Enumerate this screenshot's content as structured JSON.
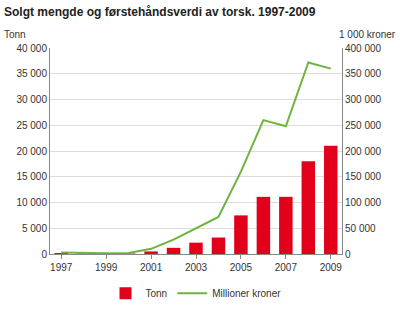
{
  "chart_data": {
    "type": "bar",
    "title": "Solgt mengde og førstehåndsverdi av torsk. 1997-2009",
    "ylabel": "Tonn",
    "y2label": "1 000 kroner",
    "categories": [
      "1997",
      null,
      "1999",
      null,
      "2001",
      null,
      "2003",
      null,
      "2005",
      null,
      "2007",
      null,
      "2009"
    ],
    "series": [
      {
        "name": "Tonn",
        "type": "bar",
        "color": "#e2001a",
        "values": [
          200,
          100,
          100,
          100,
          500,
          1200,
          2200,
          3200,
          7500,
          11100,
          11100,
          18000,
          21000
        ]
      },
      {
        "name": "Millioner kroner",
        "type": "line",
        "color": "#6db33f",
        "axis": "y2",
        "values": [
          3000,
          2000,
          1500,
          2000,
          10000,
          28000,
          50000,
          72000,
          160000,
          260000,
          248000,
          372000,
          360000
        ]
      }
    ],
    "ylim": [
      0,
      40000
    ],
    "yticks": [
      0,
      {
        "value": 5000,
        "label": "5 000"
      },
      {
        "value": 10000,
        "label": "10 000"
      },
      {
        "value": 15000,
        "label": "15 000"
      },
      {
        "value": 20000,
        "label": "20 000"
      },
      {
        "value": 25000,
        "label": "25 000"
      },
      {
        "value": 30000,
        "label": "30 000"
      },
      {
        "value": 35000,
        "label": "35 000"
      },
      {
        "value": 40000,
        "label": "40 000"
      }
    ],
    "y2lim": [
      0,
      400000
    ],
    "y2ticks": [
      0,
      {
        "value": 50000,
        "label": "50 000"
      },
      {
        "value": 100000,
        "label": "100 000"
      },
      {
        "value": 150000,
        "label": "150 000"
      },
      {
        "value": 200000,
        "label": "200 000"
      },
      {
        "value": 250000,
        "label": "250 000"
      },
      {
        "value": 300000,
        "label": "300 000"
      },
      {
        "value": 350000,
        "label": "350 000"
      },
      {
        "value": 400000,
        "label": "400 000"
      }
    ],
    "grid": true,
    "legend": "bottom"
  }
}
